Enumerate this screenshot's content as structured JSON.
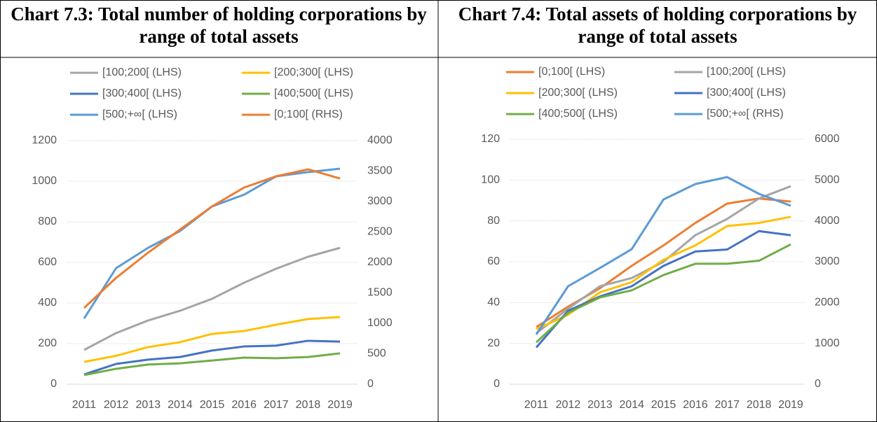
{
  "chart_data": [
    {
      "type": "line",
      "title": "Chart 7.3: Total number of holding corporations by range of total assets",
      "categories": [
        "2011",
        "2012",
        "2013",
        "2014",
        "2015",
        "2016",
        "2017",
        "2018",
        "2019"
      ],
      "ylim": [
        0,
        1200
      ],
      "yticks": [
        0,
        200,
        400,
        600,
        800,
        1000,
        1200
      ],
      "y2lim": [
        0,
        4000
      ],
      "y2ticks": [
        0,
        500,
        1000,
        1500,
        2000,
        2500,
        3000,
        3500,
        4000
      ],
      "grid": true,
      "series": [
        {
          "name": "[100;200[ (LHS)",
          "color": "#a5a5a5",
          "values": [
            169,
            252,
            314,
            362,
            421,
            500,
            569,
            628,
            672
          ]
        },
        {
          "name": "[200;300[ (LHS)",
          "color": "#ffc000",
          "values": [
            110,
            140,
            183,
            207,
            248,
            262,
            293,
            321,
            331
          ]
        },
        {
          "name": "[300;400[ (LHS)",
          "color": "#4472c4",
          "values": [
            48,
            100,
            121,
            134,
            166,
            186,
            190,
            214,
            210
          ]
        },
        {
          "name": "[400;500[ (LHS)",
          "color": "#70ad47",
          "values": [
            45,
            76,
            97,
            103,
            117,
            131,
            128,
            134,
            152
          ]
        },
        {
          "name": "[500;+∞[ (LHS)",
          "color": "#5b9bd5",
          "values": [
            324,
            572,
            672,
            755,
            876,
            934,
            1024,
            1045,
            1062
          ]
        },
        {
          "name": "[0;100[ (RHS)",
          "color": "#ed7d31",
          "axis": "y2",
          "values": [
            1253,
            1747,
            2161,
            2540,
            2920,
            3230,
            3414,
            3529,
            3379
          ]
        }
      ]
    },
    {
      "type": "line",
      "title": "Chart 7.4: Total assets of holding corporations by range of total assets",
      "categories": [
        "2011",
        "2012",
        "2013",
        "2014",
        "2015",
        "2016",
        "2017",
        "2018",
        "2019"
      ],
      "ylim": [
        0,
        120
      ],
      "yticks": [
        0,
        20,
        40,
        60,
        80,
        100,
        120
      ],
      "y2lim": [
        0,
        6000
      ],
      "y2ticks": [
        0,
        1000,
        2000,
        3000,
        4000,
        5000,
        6000
      ],
      "grid": true,
      "series": [
        {
          "name": "[0;100[ (LHS)",
          "color": "#ed7d31",
          "values": [
            28,
            38,
            47,
            58,
            68,
            79,
            88.5,
            91,
            89.5
          ]
        },
        {
          "name": "[100;200[ (LHS)",
          "color": "#a5a5a5",
          "values": [
            25,
            37,
            48,
            52,
            60,
            73,
            81,
            91,
            97
          ]
        },
        {
          "name": "[200;300[ (LHS)",
          "color": "#ffc000",
          "values": [
            27,
            34,
            45,
            50,
            61,
            68,
            77.5,
            79,
            82
          ]
        },
        {
          "name": "[300;400[ (LHS)",
          "color": "#4472c4",
          "values": [
            18,
            36,
            43,
            48,
            58,
            65,
            66,
            75,
            73
          ]
        },
        {
          "name": "[400;500[ (LHS)",
          "color": "#70ad47",
          "values": [
            20.5,
            35,
            42.5,
            46,
            53.5,
            59,
            59,
            60.5,
            68.5
          ]
        },
        {
          "name": "[500;+∞[ (RHS)",
          "color": "#5b9bd5",
          "axis": "y2",
          "values": [
            1217,
            2400,
            2846,
            3309,
            4526,
            4903,
            5074,
            4663,
            4371
          ]
        }
      ]
    }
  ]
}
